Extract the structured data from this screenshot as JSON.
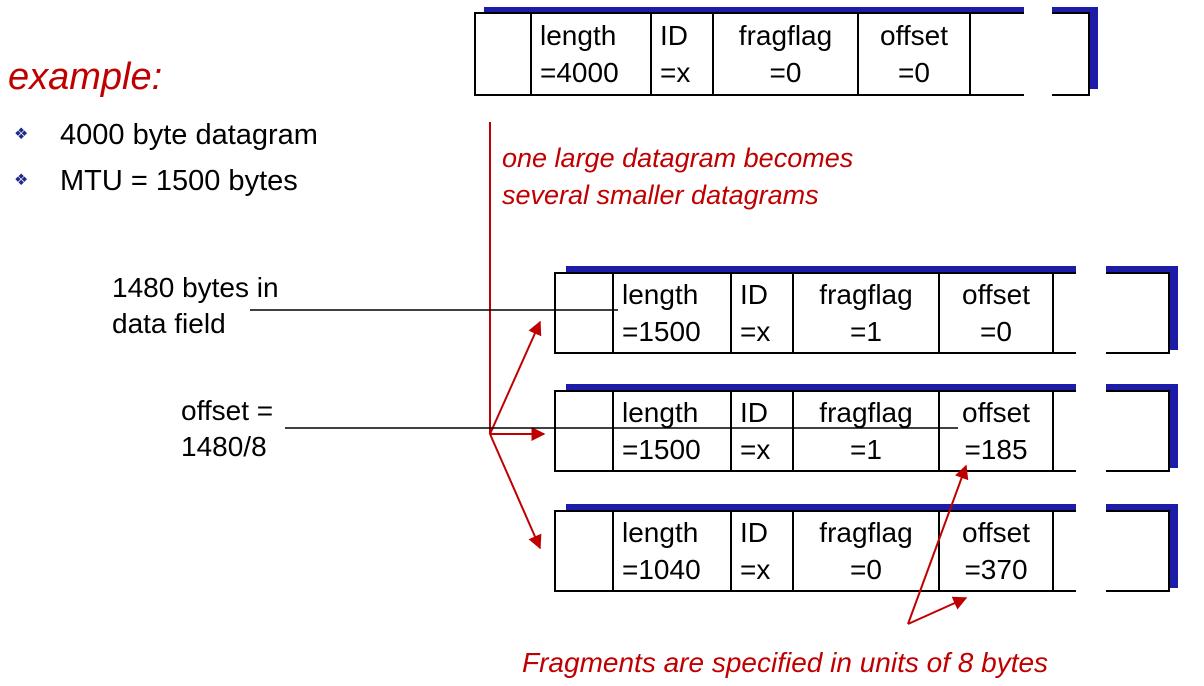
{
  "title": "example:",
  "bullets": [
    "4000 byte datagram",
    "MTU = 1500 bytes"
  ],
  "colors": {
    "accent": "#c00000",
    "shadow": "#1c1ca8",
    "bullet": "#1f2a8c"
  },
  "icons": {
    "bullet": "diamond-bullet-icon"
  },
  "note": {
    "line1": "one large datagram becomes",
    "line2": "several smaller datagrams"
  },
  "label_data_field": {
    "line1": "1480 bytes in",
    "line2": "data field"
  },
  "label_offset": {
    "line1": "offset =",
    "line2": "1480/8"
  },
  "footer": "Fragments are specified in units of 8 bytes",
  "packets": {
    "original": {
      "length": [
        "length",
        "=4000"
      ],
      "id": [
        "ID",
        "=x"
      ],
      "flag": [
        "fragflag",
        "=0"
      ],
      "offset": [
        "offset",
        "=0"
      ]
    },
    "frag1": {
      "length": [
        "length",
        "=1500"
      ],
      "id": [
        "ID",
        "=x"
      ],
      "flag": [
        "fragflag",
        "=1"
      ],
      "offset": [
        "offset",
        "=0"
      ]
    },
    "frag2": {
      "length": [
        "length",
        "=1500"
      ],
      "id": [
        "ID",
        "=x"
      ],
      "flag": [
        "fragflag",
        "=1"
      ],
      "offset": [
        "offset",
        "=185"
      ]
    },
    "frag3": {
      "length": [
        "length",
        "=1040"
      ],
      "id": [
        "ID",
        "=x"
      ],
      "flag": [
        "fragflag",
        "=0"
      ],
      "offset": [
        "offset",
        "=370"
      ]
    }
  }
}
